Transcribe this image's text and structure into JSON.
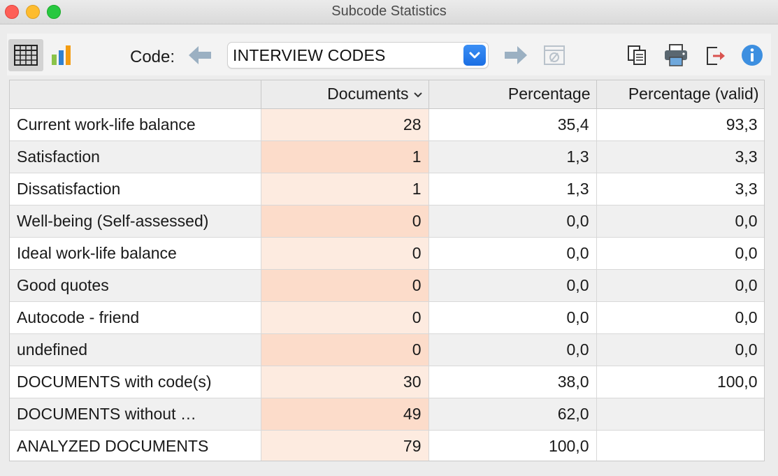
{
  "window": {
    "title": "Subcode Statistics"
  },
  "toolbar": {
    "code_label": "Code:",
    "code_selected": "INTERVIEW CODES",
    "icons": [
      "table-view-icon",
      "chart-view-icon",
      "arrow-left-icon",
      "arrow-right-icon",
      "no-filter-icon",
      "copy-icon",
      "print-icon",
      "export-icon",
      "info-icon"
    ]
  },
  "table": {
    "columns": [
      "",
      "Documents",
      "Percentage",
      "Percentage (valid)"
    ],
    "rows": [
      {
        "label": "Current work-life balance",
        "documents": "28",
        "percentage": "35,4",
        "valid": "93,3"
      },
      {
        "label": "Satisfaction",
        "documents": "1",
        "percentage": "1,3",
        "valid": "3,3"
      },
      {
        "label": "Dissatisfaction",
        "documents": "1",
        "percentage": "1,3",
        "valid": "3,3"
      },
      {
        "label": "Well-being (Self-assessed)",
        "documents": "0",
        "percentage": "0,0",
        "valid": "0,0"
      },
      {
        "label": "Ideal work-life balance",
        "documents": "0",
        "percentage": "0,0",
        "valid": "0,0"
      },
      {
        "label": "Good quotes",
        "documents": "0",
        "percentage": "0,0",
        "valid": "0,0"
      },
      {
        "label": "Autocode - friend",
        "documents": "0",
        "percentage": "0,0",
        "valid": "0,0"
      },
      {
        "label": "undefined",
        "documents": "0",
        "percentage": "0,0",
        "valid": "0,0"
      },
      {
        "label": "DOCUMENTS with code(s)",
        "documents": "30",
        "percentage": "38,0",
        "valid": "100,0"
      },
      {
        "label": "DOCUMENTS without …",
        "documents": "49",
        "percentage": "62,0",
        "valid": ""
      },
      {
        "label": "ANALYZED DOCUMENTS",
        "documents": "79",
        "percentage": "100,0",
        "valid": ""
      }
    ]
  },
  "colors": {
    "accent": "#1a6ee3",
    "docs_column_light": "#fdebe0",
    "docs_column_dark": "#fcdcca"
  }
}
